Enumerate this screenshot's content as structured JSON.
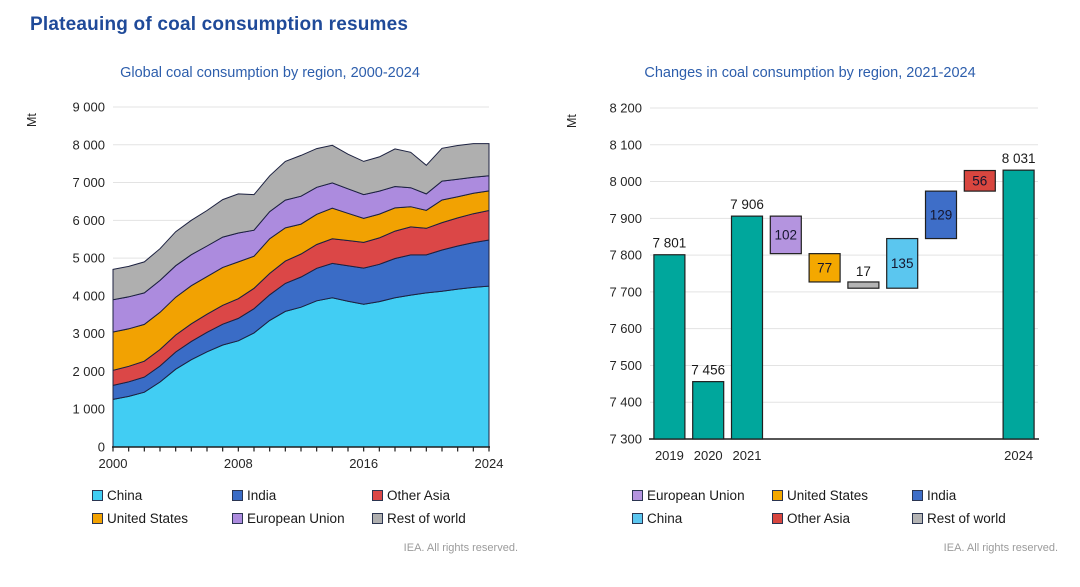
{
  "page_title": "Plateauing of coal consumption resumes",
  "footer_note": "IEA. All rights reserved.",
  "chart_data": [
    {
      "type": "area",
      "title": "Global coal consumption by region, 2000-2024",
      "unit_label": "Mt",
      "x": [
        2000,
        2001,
        2002,
        2003,
        2004,
        2005,
        2006,
        2007,
        2008,
        2009,
        2010,
        2011,
        2012,
        2013,
        2014,
        2015,
        2016,
        2017,
        2018,
        2019,
        2020,
        2021,
        2022,
        2023,
        2024
      ],
      "x_ticks_labeled": [
        {
          "value": 2000,
          "label": "2000"
        },
        {
          "value": 2008,
          "label": "2008"
        },
        {
          "value": 2016,
          "label": "2016"
        },
        {
          "value": 2024,
          "label": "2024"
        }
      ],
      "ylim": [
        0,
        9000
      ],
      "y_ticks": [
        {
          "value": 0,
          "label": "0"
        },
        {
          "value": 1000,
          "label": "1 000"
        },
        {
          "value": 2000,
          "label": "2 000"
        },
        {
          "value": 3000,
          "label": "3 000"
        },
        {
          "value": 4000,
          "label": "4 000"
        },
        {
          "value": 5000,
          "label": "5 000"
        },
        {
          "value": 6000,
          "label": "6 000"
        },
        {
          "value": 7000,
          "label": "7 000"
        },
        {
          "value": 8000,
          "label": "8 000"
        },
        {
          "value": 9000,
          "label": "9 000"
        }
      ],
      "grid": true,
      "stroke": "#1c2140",
      "series": [
        {
          "name": "China",
          "color": "#41CDF3",
          "values": [
            1260,
            1340,
            1450,
            1720,
            2060,
            2310,
            2520,
            2700,
            2810,
            3020,
            3350,
            3590,
            3700,
            3870,
            3950,
            3860,
            3780,
            3850,
            3950,
            4020,
            4080,
            4125,
            4180,
            4225,
            4260
          ]
        },
        {
          "name": "India",
          "color": "#3A6CC6",
          "values": [
            370,
            385,
            400,
            425,
            455,
            485,
            515,
            550,
            595,
            640,
            680,
            740,
            800,
            860,
            910,
            940,
            955,
            985,
            1040,
            1065,
            1005,
            1091,
            1140,
            1185,
            1220
          ]
        },
        {
          "name": "Other Asia",
          "color": "#DB4747",
          "values": [
            400,
            410,
            420,
            435,
            450,
            465,
            480,
            500,
            520,
            540,
            565,
            590,
            610,
            630,
            650,
            665,
            680,
            700,
            725,
            740,
            705,
            724,
            745,
            765,
            780
          ]
        },
        {
          "name": "United States",
          "color": "#F2A202",
          "values": [
            1015,
            995,
            975,
            985,
            1000,
            1010,
            995,
            1005,
            975,
            850,
            920,
            880,
            790,
            800,
            810,
            720,
            640,
            630,
            615,
            535,
            475,
            597,
            560,
            540,
            520
          ]
        },
        {
          "name": "European Union",
          "color": "#AC8BDE",
          "values": [
            855,
            845,
            835,
            845,
            835,
            820,
            810,
            800,
            765,
            690,
            715,
            735,
            740,
            715,
            670,
            650,
            625,
            610,
            565,
            505,
            435,
            502,
            460,
            425,
            400
          ]
        },
        {
          "name": "Rest of world",
          "color": "#AFAFAF",
          "values": [
            800,
            805,
            820,
            840,
            900,
            910,
            940,
            995,
            1035,
            940,
            950,
            1025,
            1080,
            1025,
            995,
            915,
            880,
            905,
            995,
            936,
            756,
            867,
            895,
            890,
            851
          ]
        }
      ],
      "legend": [
        {
          "label": "China",
          "color": "#41CDF3"
        },
        {
          "label": "India",
          "color": "#3A6CC6"
        },
        {
          "label": "Other Asia",
          "color": "#DB4747"
        },
        {
          "label": "United States",
          "color": "#F2A202"
        },
        {
          "label": "European Union",
          "color": "#AC8BDE"
        },
        {
          "label": "Rest of world",
          "color": "#AFAFAF"
        }
      ]
    },
    {
      "type": "waterfall",
      "title": "Changes in coal consumption by region, 2021-2024",
      "unit_label": "Mt",
      "ylim": [
        7300,
        8200
      ],
      "y_ticks": [
        {
          "value": 7300,
          "label": "7 300"
        },
        {
          "value": 7400,
          "label": "7 400"
        },
        {
          "value": 7500,
          "label": "7 500"
        },
        {
          "value": 7600,
          "label": "7 600"
        },
        {
          "value": 7700,
          "label": "7 700"
        },
        {
          "value": 7800,
          "label": "7 800"
        },
        {
          "value": 7900,
          "label": "7 900"
        },
        {
          "value": 8000,
          "label": "8 000"
        },
        {
          "value": 8100,
          "label": "8 100"
        },
        {
          "value": 8200,
          "label": "8 200"
        }
      ],
      "grid": true,
      "stroke": "#1f1f1f",
      "steps": [
        {
          "name": "2019",
          "kind": "total",
          "value": 7801,
          "label": "7 801",
          "x_label": "2019",
          "color": "#00A79C"
        },
        {
          "name": "2020",
          "kind": "total",
          "value": 7456,
          "label": "7 456",
          "x_label": "2020",
          "color": "#00A79C"
        },
        {
          "name": "2021",
          "kind": "total",
          "value": 7906,
          "label": "7 906",
          "x_label": "2021",
          "color": "#00A79C"
        },
        {
          "name": "European Union",
          "kind": "delta",
          "delta": -102,
          "label": "102",
          "label_pos": "inside",
          "color": "#B494DF"
        },
        {
          "name": "United States",
          "kind": "delta",
          "delta": -77,
          "label": "77",
          "label_pos": "inside",
          "color": "#F4A800"
        },
        {
          "name": "Rest of world",
          "kind": "delta",
          "delta": -17,
          "label": "17",
          "label_pos": "above",
          "color": "#B4B4B4"
        },
        {
          "name": "China",
          "kind": "delta",
          "delta": 135,
          "label": "135",
          "label_pos": "inside",
          "color": "#5BC6EF"
        },
        {
          "name": "India",
          "kind": "delta",
          "delta": 129,
          "label": "129",
          "label_pos": "inside",
          "color": "#3E6EC8"
        },
        {
          "name": "Other Asia",
          "kind": "delta",
          "delta": 56,
          "label": "56",
          "label_pos": "inside",
          "color": "#D8463F"
        },
        {
          "name": "2024",
          "kind": "total",
          "value": 8031,
          "label": "8 031",
          "x_label": "2024",
          "color": "#00A79C"
        }
      ],
      "legend": [
        {
          "label": "European Union",
          "color": "#B494DF"
        },
        {
          "label": "United States",
          "color": "#F4A800"
        },
        {
          "label": "India",
          "color": "#3E6EC8"
        },
        {
          "label": "China",
          "color": "#5BC6EF"
        },
        {
          "label": "Other Asia",
          "color": "#D8463F"
        },
        {
          "label": "Rest of world",
          "color": "#B4B4B4"
        }
      ]
    }
  ]
}
